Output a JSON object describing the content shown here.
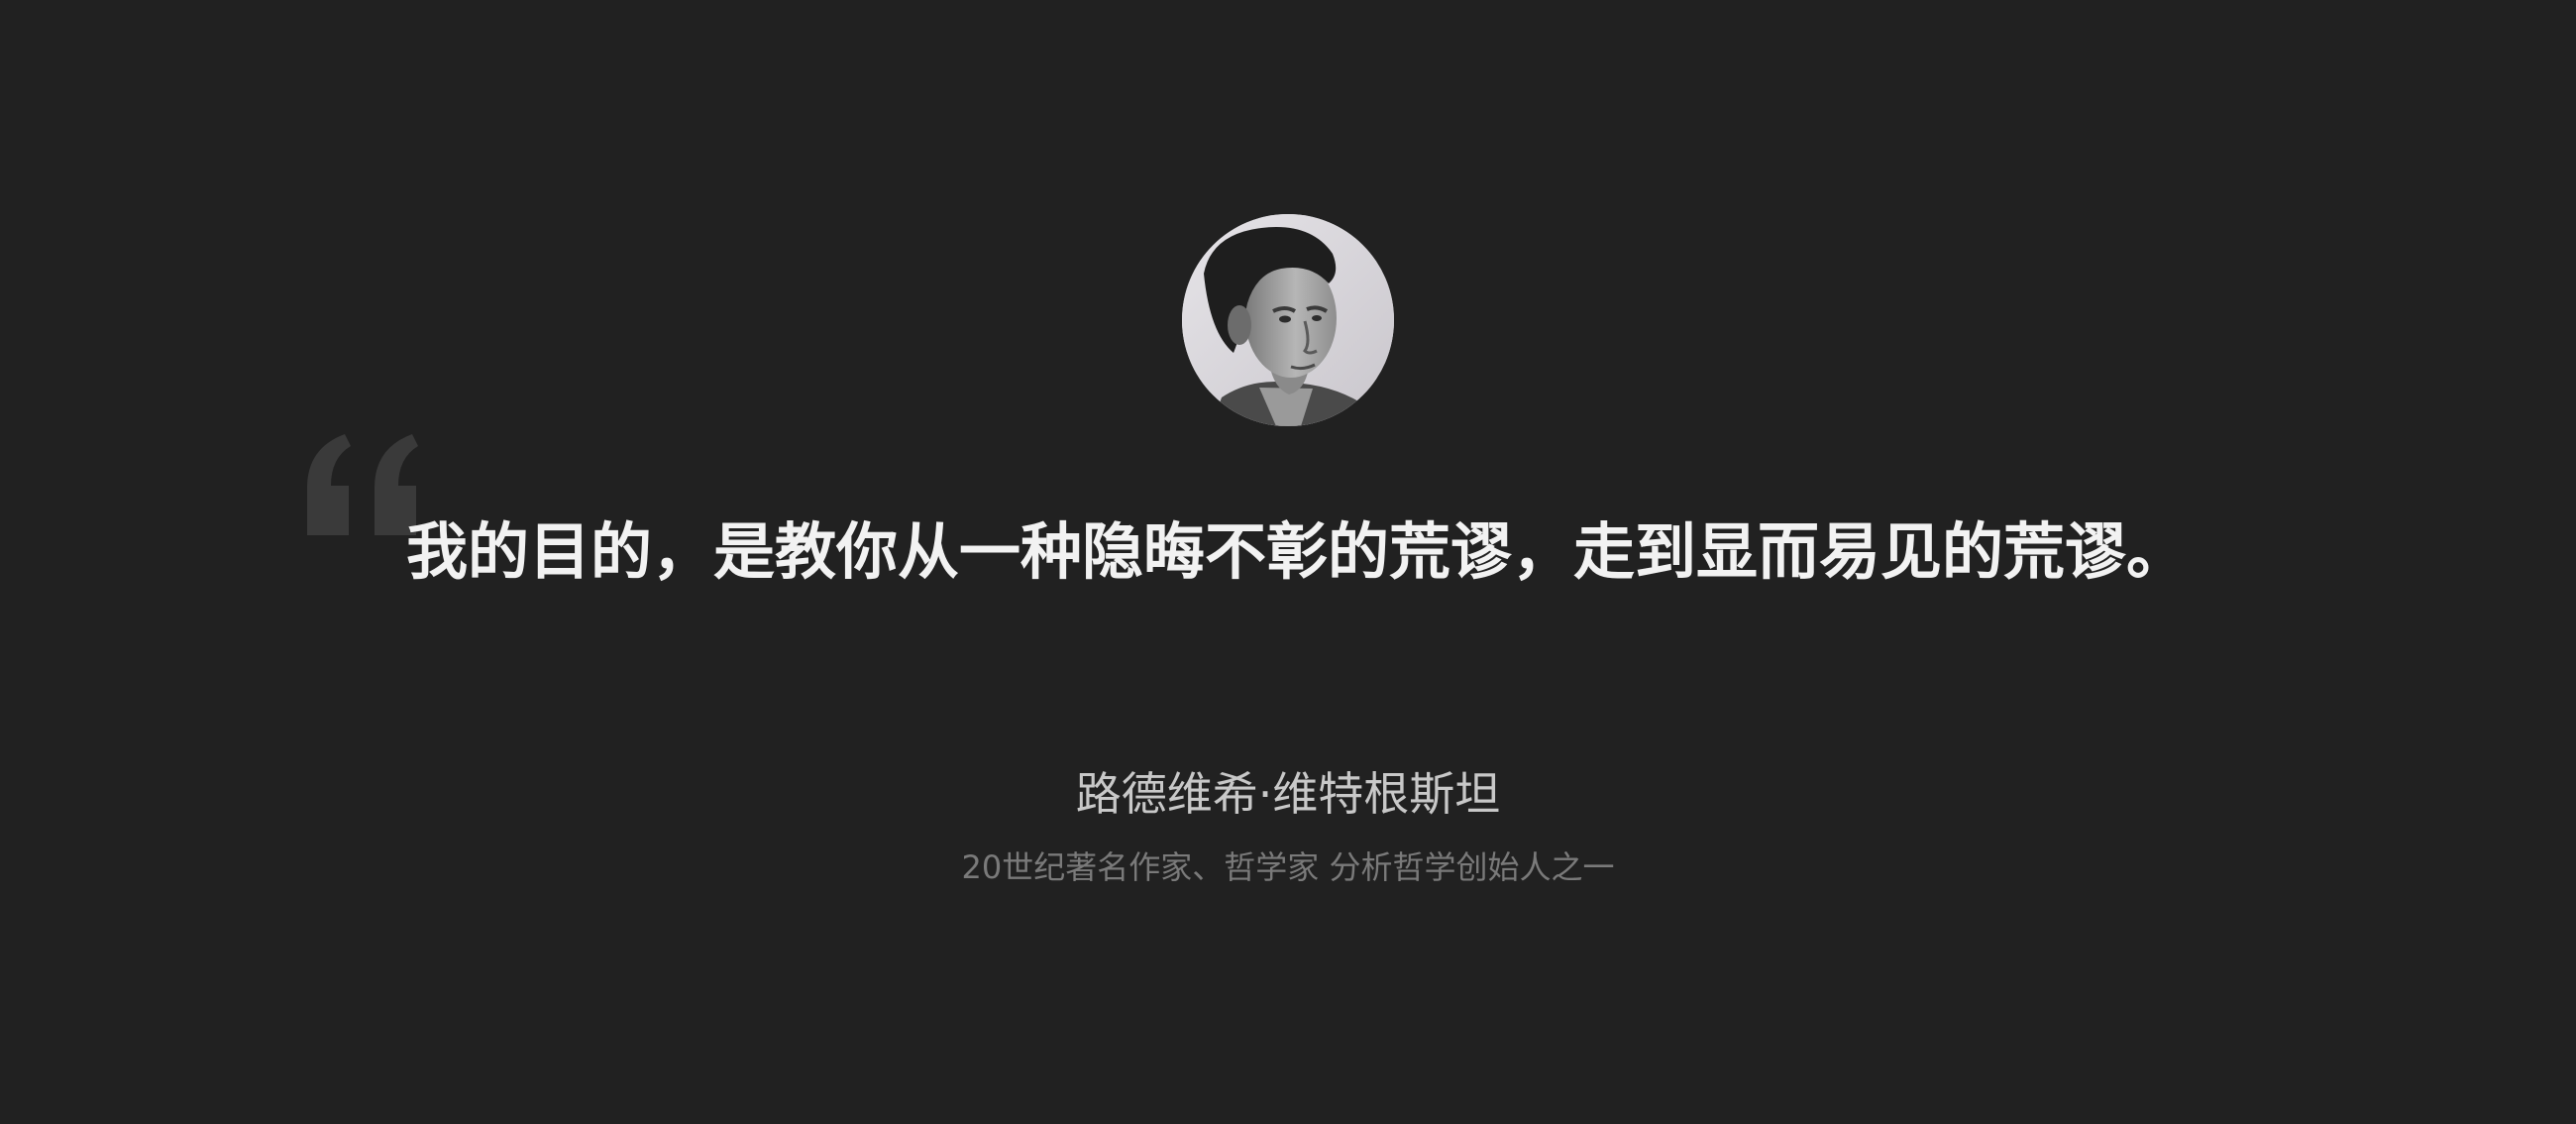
{
  "quote": {
    "text": "我的目的，是教你从一种隐晦不彰的荒谬，走到显而易见的荒谬。",
    "mark_icon": "open-quote-icon"
  },
  "author": {
    "name": "路德维希·维特根斯坦",
    "description": "20世纪著名作家、哲学家 分析哲学创始人之一",
    "portrait_icon": "author-portrait"
  },
  "colors": {
    "background": "#212121",
    "quote_text": "#f2f2f2",
    "quote_mark": "#3a3a3a",
    "author_name": "#c8c8c8",
    "author_desc": "#7a7a7a"
  }
}
